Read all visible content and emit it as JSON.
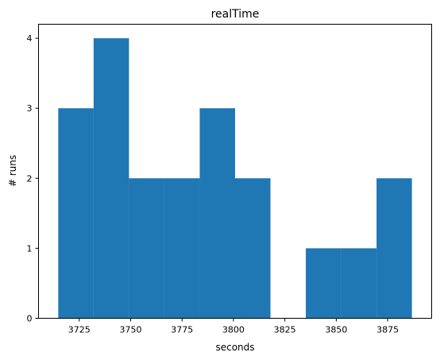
{
  "chart_data": {
    "type": "bar",
    "title": "realTime",
    "xlabel": "seconds",
    "ylabel": "# runs",
    "bin_edges": [
      3714.8,
      3732.0,
      3749.2,
      3766.4,
      3783.6,
      3800.8,
      3818.0,
      3835.2,
      3852.4,
      3869.6,
      3886.8
    ],
    "values": [
      3,
      4,
      2,
      2,
      3,
      2,
      0,
      1,
      1,
      2
    ],
    "xlim": [
      3705.2,
      3896.4
    ],
    "ylim": [
      0,
      4.2
    ],
    "xticks": [
      3725,
      3750,
      3775,
      3800,
      3825,
      3850,
      3875
    ],
    "xtick_labels": [
      "3725",
      "3750",
      "3775",
      "3800",
      "3825",
      "3850",
      "3875"
    ],
    "yticks": [
      0,
      1,
      2,
      3,
      4
    ],
    "ytick_labels": [
      "0",
      "1",
      "2",
      "3",
      "4"
    ],
    "bar_color": "#1f77b4",
    "grid": false
  }
}
